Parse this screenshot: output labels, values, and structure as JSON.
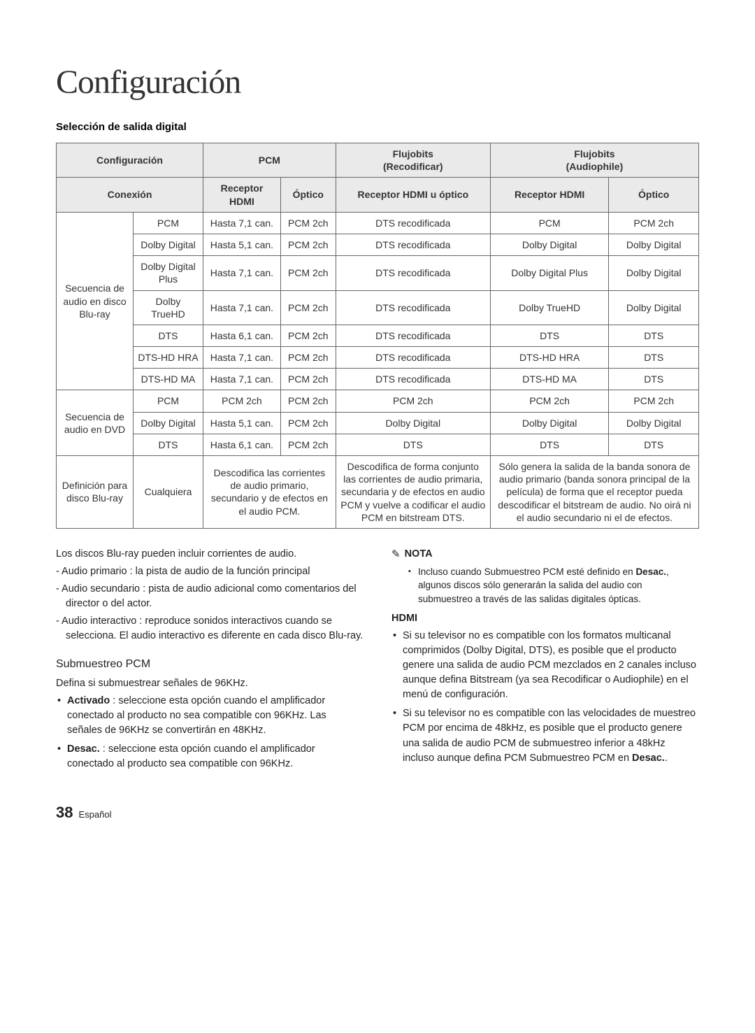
{
  "page_title": "Configuración",
  "section_heading": "Selección de salida digital",
  "table": {
    "header1": {
      "config": "Configuración",
      "pcm": "PCM",
      "flujo_recod": "Flujobits\n(Recodificar)",
      "flujo_audio": "Flujobits\n(Audiophile)"
    },
    "header2": {
      "conexion": "Conexión",
      "rec_hdmi": "Receptor HDMI",
      "optico": "Óptico",
      "rec_hdmi_opt": "Receptor HDMI u óptico",
      "rec_hdmi2": "Receptor HDMI",
      "optico2": "Óptico"
    },
    "group1_label": "Secuencia de audio en disco Blu-ray",
    "group1_rows": [
      {
        "fmt": "PCM",
        "c1": "Hasta 7,1 can.",
        "c2": "PCM 2ch",
        "c3": "DTS recodificada",
        "c4": "PCM",
        "c5": "PCM 2ch"
      },
      {
        "fmt": "Dolby Digital",
        "c1": "Hasta 5,1 can.",
        "c2": "PCM 2ch",
        "c3": "DTS recodificada",
        "c4": "Dolby Digital",
        "c5": "Dolby Digital"
      },
      {
        "fmt": "Dolby Digital Plus",
        "c1": "Hasta 7,1 can.",
        "c2": "PCM 2ch",
        "c3": "DTS recodificada",
        "c4": "Dolby Digital Plus",
        "c5": "Dolby Digital"
      },
      {
        "fmt": "Dolby TrueHD",
        "c1": "Hasta 7,1 can.",
        "c2": "PCM 2ch",
        "c3": "DTS recodificada",
        "c4": "Dolby TrueHD",
        "c5": "Dolby Digital"
      },
      {
        "fmt": "DTS",
        "c1": "Hasta 6,1 can.",
        "c2": "PCM 2ch",
        "c3": "DTS recodificada",
        "c4": "DTS",
        "c5": "DTS"
      },
      {
        "fmt": "DTS-HD HRA",
        "c1": "Hasta 7,1 can.",
        "c2": "PCM 2ch",
        "c3": "DTS recodificada",
        "c4": "DTS-HD HRA",
        "c5": "DTS"
      },
      {
        "fmt": "DTS-HD MA",
        "c1": "Hasta 7,1 can.",
        "c2": "PCM 2ch",
        "c3": "DTS recodificada",
        "c4": "DTS-HD MA",
        "c5": "DTS"
      }
    ],
    "group2_label": "Secuencia de audio en DVD",
    "group2_rows": [
      {
        "fmt": "PCM",
        "c1": "PCM 2ch",
        "c2": "PCM 2ch",
        "c3": "PCM 2ch",
        "c4": "PCM 2ch",
        "c5": "PCM 2ch"
      },
      {
        "fmt": "Dolby Digital",
        "c1": "Hasta 5,1 can.",
        "c2": "PCM 2ch",
        "c3": "Dolby Digital",
        "c4": "Dolby Digital",
        "c5": "Dolby Digital"
      },
      {
        "fmt": "DTS",
        "c1": "Hasta 6,1 can.",
        "c2": "PCM 2ch",
        "c3": "DTS",
        "c4": "DTS",
        "c5": "DTS"
      }
    ],
    "group3_label": "Definición para disco Blu-ray",
    "group3_fmt": "Cualquiera",
    "group3_c12": "Descodifica las corrientes de audio primario, secundario y de efectos en el audio PCM.",
    "group3_c3": "Descodifica de forma conjunto las corrientes de audio primaria, secundaria y de efectos en audio PCM y vuelve a codificar el audio PCM en bitstream DTS.",
    "group3_c45": "Sólo genera la salida de la banda sonora de audio primario (banda sonora principal de la película) de forma que el receptor pueda descodificar el bitstream de audio. No oirá ni el audio secundario ni el de efectos."
  },
  "body_left": {
    "p1": "Los discos Blu-ray pueden incluir corrientes de audio.",
    "li1": "- Audio primario : la pista de audio de la función principal",
    "li2": "- Audio secundario : pista de audio adicional como comentarios del director o del actor.",
    "li3": "- Audio interactivo : reproduce sonidos interactivos cuando se selecciona. El audio interactivo es diferente en cada disco Blu-ray.",
    "sub1": "Submuestreo PCM",
    "p2": "Defina si submuestrear señales de 96KHz.",
    "b1_strong": "Activado",
    "b1_rest": " : seleccione esta opción cuando el amplificador conectado al producto no sea compatible con 96KHz. Las señales de 96KHz se convertirán en 48KHz.",
    "b2_strong": "Desac.",
    "b2_rest": " : seleccione esta opción cuando el amplificador conectado al producto sea compatible con 96KHz."
  },
  "body_right": {
    "note_label": "NOTA",
    "note_item_pre": "Incluso cuando Submuestreo PCM esté definido en ",
    "note_item_strong": "Desac.",
    "note_item_post": ", algunos discos sólo generarán la salida del audio con submuestreo a través de las salidas digitales ópticas.",
    "hdmi_head": "HDMI",
    "b1": "Si su televisor no es compatible con los formatos multicanal comprimidos (Dolby Digital, DTS), es posible que el producto genere una salida de audio PCM mezclados en 2 canales incluso aunque defina Bitstream (ya sea Recodificar o Audiophile) en el menú de configuración.",
    "b2_pre": "Si su televisor no es compatible con las velocidades de muestreo PCM por encima de 48kHz, es posible que el producto genere una salida de audio PCM de submuestreo inferior a 48kHz incluso aunque defina PCM Submuestreo PCM en ",
    "b2_strong": "Desac.",
    "b2_post": "."
  },
  "footer": {
    "page": "38",
    "lang": "Español"
  }
}
